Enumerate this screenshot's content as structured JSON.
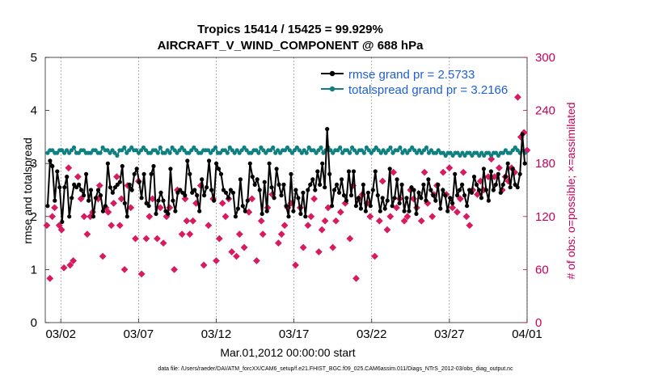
{
  "chart_data": {
    "type": "line",
    "title_line1": "Tropics 15414 / 15425 = 99.929%",
    "title_line2": "AIRCRAFT_V_WIND_COMPONENT @ 688 hPa",
    "xlabel": "Mar.01,2012 00:00:00 start",
    "ylabel": "rmse and totalspread",
    "ylabel_right": "# of obs: o=possible; ×=assimilated",
    "xlim": [
      0,
      31
    ],
    "ylim": [
      0,
      5
    ],
    "ylim_right": [
      0,
      300
    ],
    "x_ticks": [
      1,
      6,
      11,
      16,
      21,
      26,
      31
    ],
    "x_tick_labels": [
      "03/02",
      "03/07",
      "03/12",
      "03/17",
      "03/22",
      "03/27",
      "04/01"
    ],
    "y_ticks": [
      0,
      1,
      2,
      3,
      4,
      5
    ],
    "y_ticks_right": [
      0,
      60,
      120,
      180,
      240,
      300
    ],
    "colors": {
      "rmse": "#000000",
      "spread": "#0f8080",
      "obs": "#d81b60",
      "legend_text": "#1f5fd6",
      "right_axis": "#c8005a"
    },
    "legend": [
      "rmse grand pr = 2.5733",
      "totalspread grand pr = 3.2166"
    ],
    "series": [
      {
        "name": "rmse",
        "marker": "dot",
        "values": [
          2.2,
          3.05,
          2.95,
          2.3,
          2.85,
          2.55,
          1.9,
          2.55,
          2.75,
          2.0,
          2.35,
          2.6,
          2.55,
          2.6,
          2.5,
          2.4,
          2.8,
          2.3,
          2.5,
          2.0,
          2.35,
          2.5,
          2.4,
          2.1,
          2.2,
          3.0,
          2.55,
          2.45,
          2.55,
          2.6,
          2.65,
          2.95,
          2.25,
          2.0,
          2.6,
          2.5,
          2.8,
          2.9,
          2.65,
          2.35,
          2.8,
          2.25,
          2.2,
          2.8,
          2.95,
          2.05,
          2.3,
          2.45,
          2.3,
          2.1,
          2.05,
          2.9,
          2.3,
          2.1,
          2.45,
          2.5,
          2.45,
          2.4,
          3.05,
          2.8,
          2.45,
          2.5,
          2.4,
          2.1,
          2.7,
          2.4,
          2.55,
          3.05,
          2.5,
          2.3,
          3.0,
          2.9,
          2.8,
          2.5,
          2.45,
          2.35,
          2.5,
          2.45,
          2.0,
          2.15,
          2.7,
          2.2,
          2.1,
          2.3,
          3.0,
          2.75,
          2.6,
          2.7,
          2.5,
          2.05,
          2.65,
          2.1,
          3.0,
          2.55,
          2.35,
          2.9,
          2.6,
          2.4,
          2.6,
          2.2,
          2.0,
          2.8,
          2.1,
          2.5,
          2.35,
          2.05,
          2.45,
          2.0,
          2.5,
          2.6,
          2.7,
          2.5,
          2.85,
          2.6,
          3.0,
          2.55,
          3.65,
          2.8,
          2.2,
          2.5,
          2.6,
          2.45,
          2.7,
          2.4,
          2.3,
          2.85,
          2.4,
          2.85,
          2.2,
          2.35,
          2.15,
          2.6,
          2.1,
          2.45,
          2.2,
          2.5,
          2.85,
          2.4,
          2.1,
          2.35,
          2.15,
          2.3,
          2.9,
          2.2,
          2.35,
          2.7,
          2.25,
          2.6,
          2.1,
          2.35,
          2.1,
          2.55,
          2.5,
          2.05,
          2.45,
          2.35,
          2.6,
          2.3,
          2.7,
          2.5,
          2.4,
          2.3,
          2.6,
          2.15,
          2.5,
          2.4,
          2.1,
          2.35,
          2.25,
          2.8,
          2.4,
          2.5,
          2.6,
          2.4,
          2.2,
          2.5,
          2.45,
          2.75,
          2.6,
          2.5,
          2.35,
          2.9,
          2.5,
          2.3,
          2.85,
          2.5,
          2.6,
          2.8,
          2.45,
          2.6,
          2.75,
          3.0,
          2.55,
          2.9,
          2.6,
          2.55,
          2.8,
          3.55,
          3.0
        ]
      },
      {
        "name": "totalspread",
        "marker": "dot",
        "values": [
          3.2,
          3.25,
          3.25,
          3.2,
          3.2,
          3.25,
          3.25,
          3.2,
          3.25,
          3.2,
          3.25,
          3.3,
          3.2,
          3.2,
          3.25,
          3.25,
          3.2,
          3.2,
          3.2,
          3.25,
          3.25,
          3.2,
          3.2,
          3.3,
          3.25,
          3.25,
          3.2,
          3.25,
          3.2,
          3.15,
          3.25,
          3.25,
          3.3,
          3.2,
          3.25,
          3.3,
          3.25,
          3.25,
          3.2,
          3.25,
          3.3,
          3.25,
          3.2,
          3.2,
          3.25,
          3.25,
          3.2,
          3.3,
          3.2,
          3.2,
          3.25,
          3.2,
          3.3,
          3.25,
          3.2,
          3.25,
          3.3,
          3.25,
          3.2,
          3.2,
          3.25,
          3.3,
          3.25,
          3.2,
          3.2,
          3.25,
          3.25,
          3.25,
          3.2,
          3.25,
          3.3,
          3.2,
          3.2,
          3.25,
          3.25,
          3.2,
          3.3,
          3.25,
          3.2,
          3.25,
          3.2,
          3.25,
          3.3,
          3.25,
          3.2,
          3.2,
          3.25,
          3.25,
          3.2,
          3.3,
          3.25,
          3.2,
          3.25,
          3.25,
          3.3,
          3.2,
          3.25,
          3.2,
          3.25,
          3.25,
          3.3,
          3.25,
          3.2,
          3.25,
          3.3,
          3.25,
          3.2,
          3.25,
          3.2,
          3.3,
          3.25,
          3.25,
          3.2,
          3.25,
          3.3,
          3.2,
          3.25,
          3.3,
          3.25,
          3.2,
          3.25,
          3.25,
          3.3,
          3.2,
          3.25,
          3.25,
          3.2,
          3.3,
          3.25,
          3.2,
          3.25,
          3.25,
          3.2,
          3.3,
          3.25,
          3.2,
          3.25,
          3.3,
          3.25,
          3.2,
          3.25,
          3.2,
          3.25,
          3.3,
          3.2,
          3.25,
          3.25,
          3.3,
          3.2,
          3.25,
          3.2,
          3.25,
          3.3,
          3.25,
          3.2,
          3.25,
          3.2,
          3.25,
          3.3,
          3.2,
          3.25,
          3.2,
          3.2,
          3.25,
          3.2,
          3.2,
          3.15,
          3.2,
          3.2,
          3.15,
          3.2,
          3.2,
          3.15,
          3.2,
          3.15,
          3.2,
          3.2,
          3.15,
          3.2,
          3.2,
          3.15,
          3.2,
          3.15,
          3.2,
          3.2,
          3.15,
          3.2,
          3.2,
          3.15,
          3.2,
          3.2,
          3.25,
          3.2,
          3.2,
          3.25,
          3.3,
          3.25,
          3.2,
          3.25,
          3.2
        ]
      },
      {
        "name": "obs_assimilated",
        "marker": "x",
        "axis": "right",
        "points": [
          [
            0.1,
            110
          ],
          [
            0.3,
            50
          ],
          [
            0.45,
            120
          ],
          [
            0.6,
            130
          ],
          [
            0.9,
            110
          ],
          [
            1.05,
            105
          ],
          [
            1.2,
            62
          ],
          [
            1.5,
            175
          ],
          [
            1.6,
            65
          ],
          [
            1.8,
            70
          ],
          [
            2.1,
            165
          ],
          [
            2.3,
            140
          ],
          [
            2.5,
            120
          ],
          [
            2.7,
            100
          ],
          [
            2.9,
            120
          ],
          [
            3.05,
            125
          ],
          [
            3.4,
            140
          ],
          [
            3.5,
            155
          ],
          [
            3.7,
            75
          ],
          [
            3.9,
            130
          ],
          [
            4.05,
            125
          ],
          [
            4.25,
            110
          ],
          [
            4.4,
            135
          ],
          [
            4.6,
            165
          ],
          [
            4.8,
            110
          ],
          [
            4.9,
            140
          ],
          [
            5.1,
            60
          ],
          [
            5.3,
            155
          ],
          [
            5.5,
            130
          ],
          [
            5.8,
            95
          ],
          [
            6.0,
            160
          ],
          [
            6.2,
            55
          ],
          [
            6.5,
            95
          ],
          [
            6.7,
            120
          ],
          [
            6.9,
            140
          ],
          [
            7.2,
            95
          ],
          [
            7.4,
            130
          ],
          [
            7.6,
            90
          ],
          [
            7.8,
            120
          ],
          [
            8.0,
            130
          ],
          [
            8.3,
            60
          ],
          [
            8.5,
            150
          ],
          [
            8.8,
            100
          ],
          [
            9.0,
            140
          ],
          [
            9.1,
            115
          ],
          [
            9.3,
            100
          ],
          [
            9.5,
            115
          ],
          [
            9.7,
            135
          ],
          [
            10.0,
            155
          ],
          [
            10.2,
            65
          ],
          [
            10.5,
            110
          ],
          [
            10.8,
            140
          ],
          [
            11.0,
            70
          ],
          [
            11.2,
            95
          ],
          [
            11.4,
            135
          ],
          [
            11.6,
            120
          ],
          [
            11.8,
            140
          ],
          [
            12.0,
            80
          ],
          [
            12.3,
            75
          ],
          [
            12.5,
            100
          ],
          [
            12.8,
            85
          ],
          [
            13.1,
            125
          ],
          [
            13.3,
            140
          ],
          [
            13.6,
            70
          ],
          [
            13.9,
            115
          ],
          [
            14.0,
            100
          ],
          [
            14.3,
            130
          ],
          [
            14.6,
            145
          ],
          [
            15.0,
            90
          ],
          [
            15.2,
            100
          ],
          [
            15.4,
            110
          ],
          [
            15.6,
            130
          ],
          [
            15.8,
            135
          ],
          [
            16.1,
            65
          ],
          [
            16.4,
            130
          ],
          [
            16.6,
            85
          ],
          [
            16.9,
            110
          ],
          [
            17.1,
            120
          ],
          [
            17.3,
            140
          ],
          [
            17.6,
            80
          ],
          [
            17.8,
            105
          ],
          [
            18.0,
            115
          ],
          [
            18.2,
            130
          ],
          [
            18.5,
            85
          ],
          [
            18.7,
            115
          ],
          [
            19.0,
            125
          ],
          [
            19.3,
            135
          ],
          [
            19.6,
            95
          ],
          [
            19.8,
            155
          ],
          [
            20.0,
            50
          ],
          [
            20.2,
            140
          ],
          [
            20.4,
            145
          ],
          [
            20.7,
            135
          ],
          [
            20.9,
            120
          ],
          [
            21.2,
            75
          ],
          [
            21.5,
            115
          ],
          [
            21.7,
            160
          ],
          [
            22.0,
            105
          ],
          [
            22.2,
            120
          ],
          [
            22.4,
            170
          ],
          [
            22.6,
            130
          ],
          [
            22.8,
            140
          ],
          [
            23.1,
            115
          ],
          [
            23.3,
            120
          ],
          [
            23.5,
            150
          ],
          [
            23.7,
            140
          ],
          [
            23.9,
            130
          ],
          [
            24.2,
            115
          ],
          [
            24.4,
            170
          ],
          [
            24.6,
            135
          ],
          [
            24.9,
            120
          ],
          [
            25.0,
            145
          ],
          [
            25.2,
            155
          ],
          [
            25.6,
            170
          ],
          [
            25.8,
            145
          ],
          [
            26.0,
            175
          ],
          [
            26.2,
            130
          ],
          [
            26.5,
            125
          ],
          [
            26.7,
            140
          ],
          [
            26.9,
            170
          ],
          [
            27.1,
            120
          ],
          [
            27.3,
            110
          ],
          [
            27.5,
            150
          ],
          [
            27.8,
            145
          ],
          [
            28.0,
            160
          ],
          [
            28.2,
            150
          ],
          [
            28.5,
            165
          ],
          [
            28.7,
            185
          ],
          [
            28.9,
            165
          ],
          [
            29.2,
            175
          ],
          [
            29.4,
            150
          ],
          [
            29.6,
            165
          ],
          [
            29.8,
            160
          ],
          [
            30.0,
            175
          ],
          [
            30.2,
            170
          ],
          [
            30.4,
            255
          ],
          [
            30.6,
            210
          ],
          [
            30.8,
            215
          ],
          [
            31.0,
            195
          ]
        ]
      }
    ],
    "footnote": "data file: /Users/raeder/DAI/ATM_forcXX/CAM6_setup/f.e21.FHIST_BGC.f09_025.CAM6assim.011/Diags_NTrS_2012-03/obs_diag_output.nc"
  }
}
